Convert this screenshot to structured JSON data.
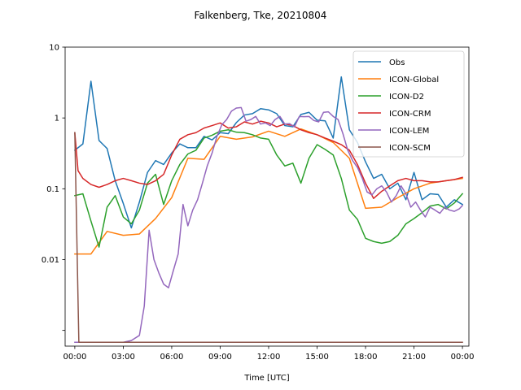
{
  "chart_data": {
    "type": "line",
    "title": "Falkenberg, Tke, 20210804",
    "xlabel": "Time [UTC]",
    "ylabel": "",
    "yscale": "log",
    "xlim": [
      -0.6,
      24.4
    ],
    "ylim": [
      0.0006,
      10
    ],
    "x_ticks": [
      {
        "value": 0,
        "label": "00:00"
      },
      {
        "value": 3,
        "label": "03:00"
      },
      {
        "value": 6,
        "label": "06:00"
      },
      {
        "value": 9,
        "label": "09:00"
      },
      {
        "value": 12,
        "label": "12:00"
      },
      {
        "value": 15,
        "label": "15:00"
      },
      {
        "value": 18,
        "label": "18:00"
      },
      {
        "value": 21,
        "label": "21:00"
      },
      {
        "value": 24,
        "label": "00:00"
      }
    ],
    "y_ticks": [
      {
        "value": 10,
        "label": "10"
      },
      {
        "value": 1,
        "label": "1"
      },
      {
        "value": 0.1,
        "label": "0.1"
      },
      {
        "value": 0.01,
        "label": "0.01"
      },
      {
        "value": 0.001,
        "label": ""
      }
    ],
    "grid": false,
    "legend_position": "top-right",
    "series": [
      {
        "name": "Obs",
        "color": "#1f77b4",
        "x": [
          0,
          0.5,
          1.0,
          1.5,
          2.0,
          2.5,
          3.0,
          3.5,
          4.0,
          4.5,
          5.0,
          5.5,
          6.0,
          6.5,
          7.0,
          7.5,
          8.0,
          8.5,
          9.0,
          9.5,
          10.0,
          10.5,
          11.0,
          11.5,
          12.0,
          12.5,
          13.0,
          13.5,
          14.0,
          14.5,
          15.0,
          15.5,
          16.0,
          16.5,
          17.0,
          17.5,
          18.0,
          18.5,
          19.0,
          19.5,
          20.0,
          20.5,
          21.0,
          21.5,
          22.0,
          22.5,
          23.0,
          23.5,
          24.0
        ],
        "y": [
          0.35,
          0.43,
          3.3,
          0.48,
          0.37,
          0.13,
          0.062,
          0.028,
          0.065,
          0.17,
          0.25,
          0.22,
          0.32,
          0.43,
          0.38,
          0.38,
          0.55,
          0.49,
          0.62,
          0.6,
          0.86,
          1.1,
          1.15,
          1.35,
          1.3,
          1.15,
          0.78,
          0.75,
          1.12,
          1.2,
          0.93,
          0.91,
          0.52,
          3.8,
          0.68,
          0.45,
          0.24,
          0.14,
          0.16,
          0.1,
          0.12,
          0.07,
          0.17,
          0.07,
          0.085,
          0.083,
          0.055,
          0.07,
          0.06
        ]
      },
      {
        "name": "ICON-Global",
        "color": "#ff7f0e",
        "x": [
          0,
          1,
          2,
          3,
          4,
          5,
          6,
          7,
          8,
          9,
          10,
          11,
          12,
          13,
          14,
          15,
          16,
          17,
          18,
          19,
          20,
          21,
          22,
          23,
          24
        ],
        "y": [
          0.012,
          0.012,
          0.025,
          0.022,
          0.023,
          0.038,
          0.075,
          0.27,
          0.26,
          0.55,
          0.5,
          0.54,
          0.65,
          0.55,
          0.7,
          0.58,
          0.45,
          0.27,
          0.053,
          0.055,
          0.075,
          0.1,
          0.12,
          0.13,
          0.14
        ]
      },
      {
        "name": "ICON-D2",
        "color": "#2ca02c",
        "x": [
          0,
          0.5,
          1.0,
          1.5,
          2.0,
          2.5,
          3.0,
          3.5,
          4.0,
          4.5,
          5.0,
          5.5,
          6.0,
          6.5,
          7.0,
          7.5,
          8.0,
          8.5,
          9.0,
          9.5,
          10.0,
          10.5,
          11.0,
          11.5,
          12.0,
          12.5,
          13.0,
          13.5,
          14.0,
          14.5,
          15.0,
          15.5,
          16.0,
          16.5,
          17.0,
          17.5,
          18.0,
          18.5,
          19.0,
          19.5,
          20.0,
          20.5,
          21.0,
          21.5,
          22.0,
          22.5,
          23.0,
          23.5,
          24.0
        ],
        "y": [
          0.08,
          0.085,
          0.035,
          0.015,
          0.055,
          0.08,
          0.04,
          0.032,
          0.05,
          0.12,
          0.16,
          0.06,
          0.13,
          0.22,
          0.31,
          0.35,
          0.52,
          0.57,
          0.65,
          0.68,
          0.63,
          0.62,
          0.58,
          0.52,
          0.5,
          0.3,
          0.21,
          0.23,
          0.12,
          0.27,
          0.42,
          0.36,
          0.3,
          0.14,
          0.05,
          0.037,
          0.02,
          0.018,
          0.017,
          0.018,
          0.022,
          0.032,
          0.038,
          0.046,
          0.057,
          0.06,
          0.052,
          0.063,
          0.085
        ]
      },
      {
        "name": "ICON-CRM",
        "color": "#d62728",
        "x": [
          0,
          0.2,
          0.5,
          1.0,
          1.5,
          2.0,
          2.5,
          3.0,
          3.5,
          4.0,
          4.5,
          5.0,
          5.5,
          6.0,
          6.5,
          7.0,
          7.5,
          8.0,
          8.5,
          9.0,
          9.5,
          10.0,
          10.5,
          11.0,
          11.5,
          12.0,
          12.5,
          13.0,
          13.5,
          14.0,
          14.5,
          15.0,
          15.5,
          16.0,
          16.5,
          17.0,
          17.5,
          18.0,
          18.5,
          19.0,
          19.5,
          20.0,
          20.5,
          21.0,
          21.5,
          22.0,
          22.5,
          23.0,
          23.5,
          24.0
        ],
        "y": [
          0.62,
          0.18,
          0.14,
          0.115,
          0.105,
          0.115,
          0.13,
          0.14,
          0.13,
          0.12,
          0.115,
          0.13,
          0.16,
          0.3,
          0.5,
          0.58,
          0.62,
          0.72,
          0.78,
          0.85,
          0.72,
          0.75,
          0.88,
          0.82,
          0.9,
          0.85,
          0.75,
          0.82,
          0.78,
          0.68,
          0.62,
          0.58,
          0.52,
          0.47,
          0.42,
          0.35,
          0.22,
          0.12,
          0.073,
          0.092,
          0.11,
          0.13,
          0.14,
          0.13,
          0.13,
          0.125,
          0.125,
          0.13,
          0.135,
          0.145
        ]
      },
      {
        "name": "ICON-LEM",
        "color": "#9467bd",
        "x": [
          0,
          0.5,
          1.0,
          1.5,
          2.0,
          2.5,
          3.0,
          3.5,
          4.0,
          4.3,
          4.6,
          4.9,
          5.2,
          5.5,
          5.8,
          6.1,
          6.4,
          6.7,
          7.0,
          7.3,
          7.6,
          7.9,
          8.2,
          8.5,
          8.8,
          9.1,
          9.4,
          9.7,
          10.0,
          10.3,
          10.6,
          10.9,
          11.2,
          11.5,
          11.8,
          12.1,
          12.4,
          12.7,
          13.0,
          13.3,
          13.6,
          13.9,
          14.2,
          14.5,
          14.8,
          15.1,
          15.4,
          15.7,
          16.0,
          16.3,
          16.6,
          16.9,
          17.2,
          17.5,
          17.8,
          18.1,
          18.4,
          18.7,
          19.0,
          19.3,
          19.6,
          19.9,
          20.2,
          20.5,
          20.8,
          21.1,
          21.4,
          21.7,
          22.0,
          22.3,
          22.6,
          22.9,
          23.2,
          23.5,
          23.8,
          24.0
        ],
        "y": [
          0.00068,
          0.00068,
          0.00068,
          0.00068,
          0.00068,
          0.00068,
          0.00068,
          0.00072,
          0.00085,
          0.0022,
          0.026,
          0.01,
          0.0065,
          0.0045,
          0.004,
          0.007,
          0.012,
          0.06,
          0.03,
          0.05,
          0.07,
          0.12,
          0.21,
          0.32,
          0.55,
          0.8,
          0.95,
          1.25,
          1.38,
          1.4,
          0.9,
          0.95,
          1.05,
          0.82,
          0.85,
          0.78,
          0.95,
          1.05,
          0.82,
          0.83,
          0.75,
          1.05,
          1.04,
          1.05,
          0.92,
          0.88,
          1.2,
          1.22,
          1.05,
          0.95,
          0.6,
          0.35,
          0.25,
          0.2,
          0.14,
          0.09,
          0.082,
          0.1,
          0.11,
          0.09,
          0.065,
          0.08,
          0.11,
          0.085,
          0.055,
          0.065,
          0.05,
          0.04,
          0.055,
          0.05,
          0.045,
          0.055,
          0.05,
          0.048,
          0.052,
          0.058
        ]
      },
      {
        "name": "ICON-SCM",
        "color": "#8c564b",
        "x": [
          0,
          0.25,
          0.5,
          1,
          2,
          3,
          4,
          5,
          6,
          7,
          8,
          9,
          10,
          11,
          12,
          13,
          14,
          15,
          16,
          17,
          18,
          19,
          20,
          21,
          22,
          23,
          24
        ],
        "y": [
          0.62,
          0.00068,
          0.00068,
          0.00068,
          0.00068,
          0.00068,
          0.00068,
          0.00068,
          0.00068,
          0.00068,
          0.00068,
          0.00068,
          0.00068,
          0.00068,
          0.00068,
          0.00068,
          0.00068,
          0.00068,
          0.00068,
          0.00068,
          0.00068,
          0.00068,
          0.00068,
          0.00068,
          0.00068,
          0.00068,
          0.00068
        ]
      }
    ]
  }
}
